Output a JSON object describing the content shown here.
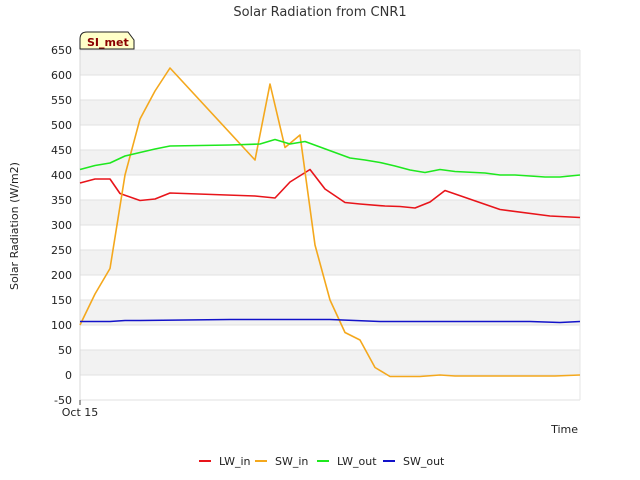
{
  "chart_data": {
    "type": "line",
    "title": "Solar Radiation from CNR1",
    "xlabel": "Time",
    "ylabel": "Solar Radiation (W/m2)",
    "badge": "SI_met",
    "xlim": [
      0,
      100
    ],
    "ylim": [
      -50,
      650
    ],
    "yticks": [
      -50,
      0,
      50,
      100,
      150,
      200,
      250,
      300,
      350,
      400,
      450,
      500,
      550,
      600,
      650
    ],
    "xtick_label": "Oct 15",
    "grid": "alternating-bands",
    "legend_position": "bottom-center",
    "series": [
      {
        "name": "LW_in",
        "color": "#e8141a",
        "x": [
          0,
          3,
          6,
          8,
          12,
          15,
          18,
          35,
          39,
          42,
          46,
          49,
          53,
          56,
          61,
          64,
          67,
          70,
          73,
          84,
          94,
          100
        ],
        "y": [
          384,
          392,
          392,
          363,
          349,
          352,
          364,
          358,
          354,
          386,
          411,
          372,
          345,
          342,
          338,
          337,
          334,
          346,
          369,
          331,
          318,
          315
        ]
      },
      {
        "name": "SW_in",
        "color": "#f4a81d",
        "x": [
          0,
          3,
          6,
          9,
          12,
          15,
          18,
          35,
          38,
          41,
          44,
          47,
          50,
          53,
          56,
          59,
          62,
          68,
          72,
          75,
          95,
          100
        ],
        "y": [
          100,
          162,
          213,
          400,
          512,
          568,
          614,
          430,
          582,
          455,
          480,
          260,
          150,
          85,
          70,
          15,
          -3,
          -3,
          0,
          -2,
          -2,
          0
        ]
      },
      {
        "name": "LW_out",
        "color": "#1ee81e",
        "x": [
          0,
          3,
          6,
          9,
          12,
          15,
          18,
          24,
          30,
          36,
          39,
          42,
          45,
          48,
          51,
          54,
          57,
          60,
          63,
          66,
          69,
          72,
          75,
          81,
          84,
          87,
          93,
          96,
          100
        ],
        "y": [
          411,
          419,
          424,
          438,
          445,
          452,
          458,
          459,
          460,
          462,
          471,
          462,
          467,
          456,
          445,
          434,
          430,
          425,
          418,
          410,
          405,
          411,
          407,
          404,
          400,
          400,
          396,
          396,
          400
        ]
      },
      {
        "name": "SW_out",
        "color": "#1212c9",
        "x": [
          0,
          3,
          6,
          9,
          12,
          30,
          50,
          55,
          60,
          70,
          80,
          90,
          96,
          100
        ],
        "y": [
          107,
          107,
          107,
          109,
          109,
          111,
          111,
          109,
          107,
          107,
          107,
          107,
          105,
          107
        ]
      }
    ]
  }
}
